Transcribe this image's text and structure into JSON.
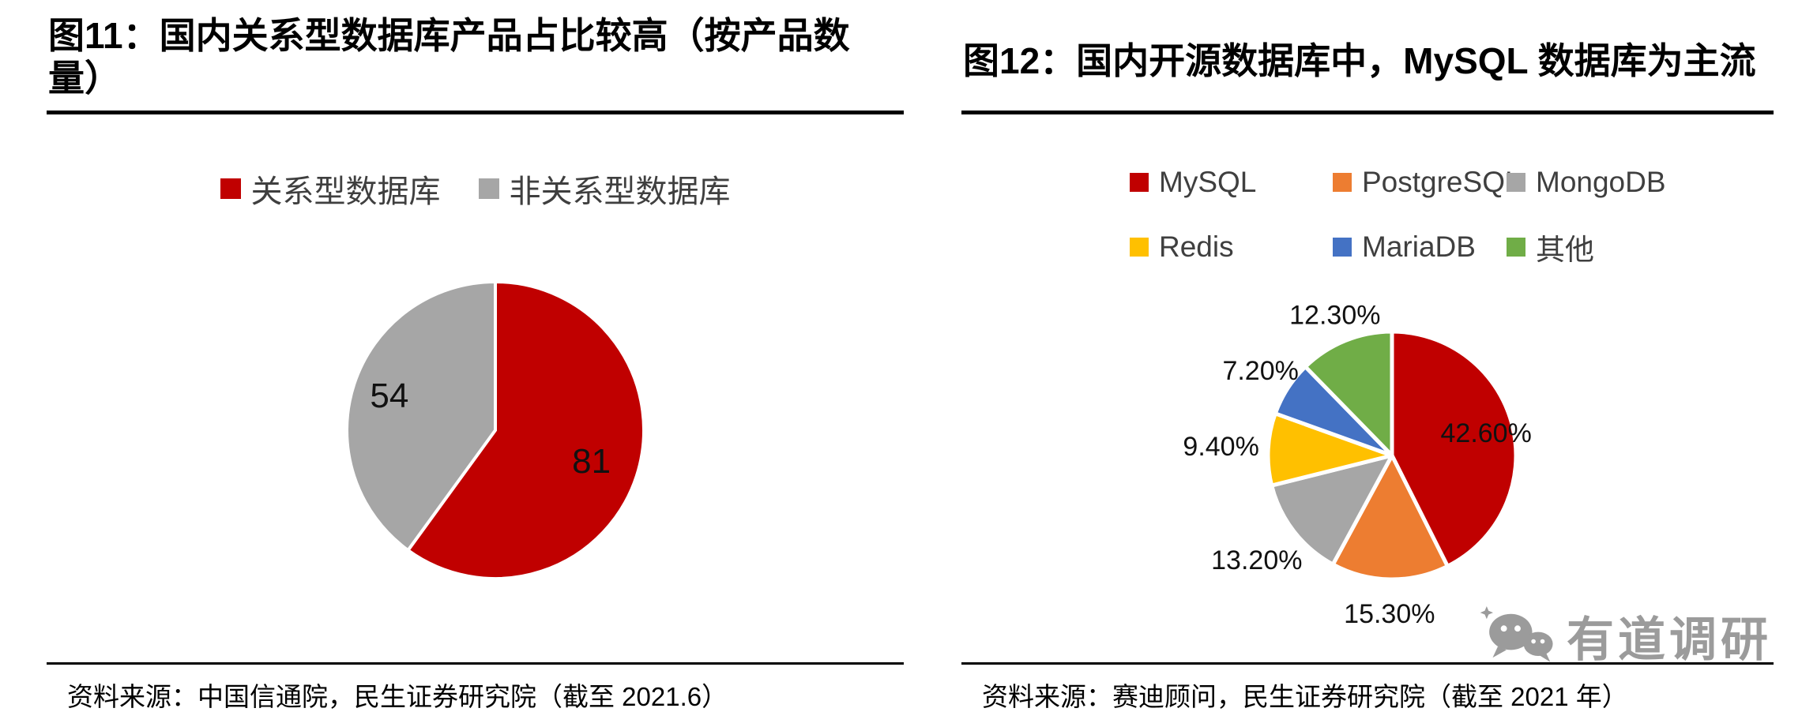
{
  "page": {
    "background": "#ffffff"
  },
  "chart_data": [
    {
      "type": "pie",
      "figure_label": "图11",
      "title": "图11：国内关系型数据库产品占比较高（按产品数\n量）",
      "labels": [
        "关系型数据库",
        "非关系型数据库"
      ],
      "values": [
        81,
        54
      ],
      "colors": [
        "#c00000",
        "#a6a6a6"
      ],
      "data_labels": [
        "81",
        "54"
      ],
      "label_radius": [
        0.68,
        0.75
      ],
      "start_angle": 0,
      "legend_position": "top",
      "legend_rows": [
        [
          0,
          1
        ]
      ],
      "source": "资料来源：中国信通院，民生证券研究院（截至 2021.6）"
    },
    {
      "type": "pie",
      "figure_label": "图12",
      "title": "图12：国内开源数据库中，MySQL 数据库为主流",
      "labels": [
        "MySQL",
        "PostgreSQL",
        "MongoDB",
        "Redis",
        "MariaDB",
        "其他"
      ],
      "values": [
        42.6,
        15.3,
        13.2,
        9.4,
        7.2,
        12.3
      ],
      "colors": [
        "#c00000",
        "#ed7d31",
        "#a6a6a6",
        "#ffc000",
        "#4472c4",
        "#70ad47"
      ],
      "data_labels": [
        "42.60%",
        "15.30%",
        "13.20%",
        "9.40%",
        "7.20%",
        "12.30%"
      ],
      "label_radius": [
        0.78,
        1.28,
        1.38,
        1.38,
        1.26,
        1.22
      ],
      "start_angle": 0,
      "legend_position": "top",
      "legend_rows": [
        [
          0,
          1,
          2
        ],
        [
          3,
          4,
          5
        ]
      ],
      "source": "资料来源：赛迪顾问，民生证券研究院（截至 2021 年）"
    }
  ],
  "watermark": {
    "text": "有道调研",
    "icon": "wechat-bubbles-icon",
    "color": "#9b9b9b"
  }
}
